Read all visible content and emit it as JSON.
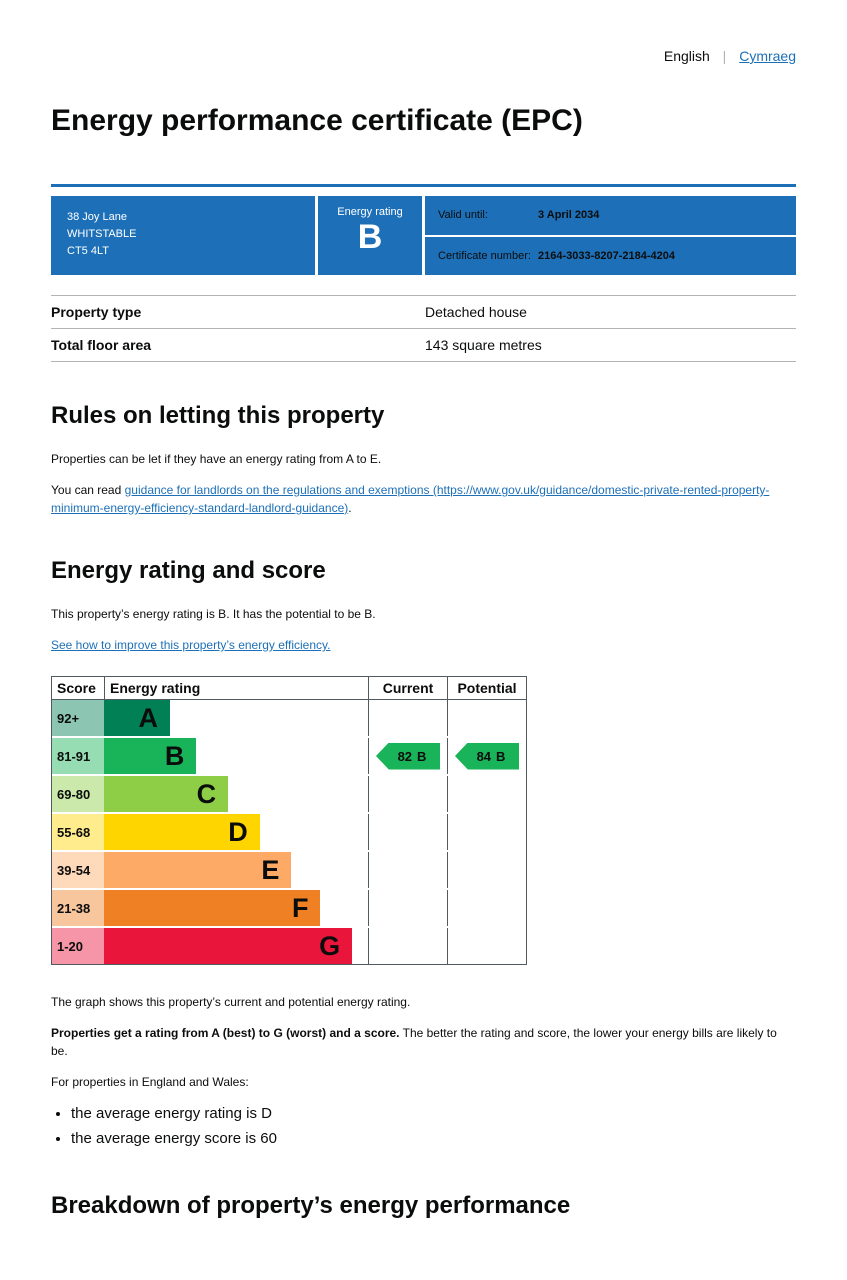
{
  "header": {
    "language_current": "English",
    "language_divider": "|",
    "language_alternate": "Cymraeg",
    "title": "Energy performance certificate (EPC)"
  },
  "banner": {
    "address_line1": "38 Joy Lane",
    "address_line2": "WHITSTABLE",
    "address_line3": "CT5 4LT",
    "energy_rating_label": "Energy rating",
    "energy_rating_value": "B",
    "valid_until_label": "Valid until:",
    "valid_until_value": "3 April 2034",
    "certificate_number_label": "Certificate number:",
    "certificate_number_value": "2164-3033-8207-2184-4204"
  },
  "property": {
    "rows": [
      {
        "label": "Property type",
        "value": "Detached house"
      },
      {
        "label": "Total floor area",
        "value": "143 square metres"
      }
    ]
  },
  "rules": {
    "heading": "Rules on letting this property",
    "intro": "Properties can be let if they have an energy rating from A to E.",
    "read_prefix": "You can read ",
    "guidance_link": "guidance for landlords on the regulations and exemptions (https://www.gov.uk/guidance/domestic-private-rented-property-minimum-energy-efficiency-standard-landlord-guidance)",
    "read_suffix": "."
  },
  "rating_section": {
    "heading": "Energy rating and score",
    "summary": "This property’s energy rating is B. It has the potential to be B.",
    "improve_link": "See how to improve this property’s energy efficiency."
  },
  "chart_data": {
    "type": "epc-rating-bands",
    "columns": {
      "score": "Score",
      "rating": "Energy rating",
      "current": "Current",
      "potential": "Potential"
    },
    "bands": [
      {
        "score": "92+",
        "letter": "A",
        "color": "#008054",
        "width_pct": 25
      },
      {
        "score": "81-91",
        "letter": "B",
        "color": "#19b459",
        "width_pct": 35
      },
      {
        "score": "69-80",
        "letter": "C",
        "color": "#8dce46",
        "width_pct": 47
      },
      {
        "score": "55-68",
        "letter": "D",
        "color": "#ffd500",
        "width_pct": 59
      },
      {
        "score": "39-54",
        "letter": "E",
        "color": "#fcaa65",
        "width_pct": 71
      },
      {
        "score": "21-38",
        "letter": "F",
        "color": "#ef8023",
        "width_pct": 82
      },
      {
        "score": "1-20",
        "letter": "G",
        "color": "#e9153b",
        "width_pct": 94
      }
    ],
    "current": {
      "score": "82",
      "letter": "B",
      "band": "B",
      "color": "#19b459"
    },
    "potential": {
      "score": "84",
      "letter": "B",
      "band": "B",
      "color": "#19b459"
    }
  },
  "chart_notes": {
    "graph_note": "The graph shows this property’s current and potential energy rating.",
    "rating_bold": "Properties get a rating from A (best) to G (worst) and a score.",
    "rating_rest": " The better the rating and score, the lower your energy bills are likely to be.",
    "regions_intro": "For properties in England and Wales:",
    "bullets": [
      "the average energy rating is D",
      "the average energy score is 60"
    ]
  },
  "breakdown": {
    "heading": "Breakdown of property’s energy performance"
  },
  "colors": {
    "govuk_blue": "#1d70b8",
    "link_blue": "#1d70b8",
    "text": "#0b0c0c",
    "border_grey": "#b1b4b6"
  }
}
